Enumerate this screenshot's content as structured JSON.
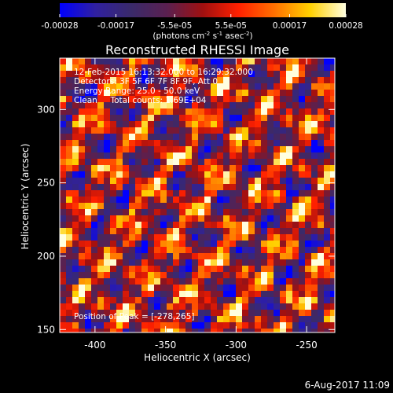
{
  "colorbar": {
    "ticks": [
      "-0.00028",
      "-0.00017",
      "-5.5e-05",
      "5.5e-05",
      "0.00017",
      "0.00028"
    ],
    "tick_values": [
      -0.00028,
      -0.00017,
      -5.5e-05,
      5.5e-05,
      0.00017,
      0.00028
    ],
    "range": [
      -0.00028,
      0.00028
    ],
    "unit_prefix": "(photons cm",
    "unit_exp1": "-2",
    "unit_mid1": " s",
    "unit_exp2": "-1",
    "unit_mid2": " asec",
    "unit_exp3": "-2",
    "unit_suffix": ")",
    "colormap": [
      "#0000ff",
      "#3020a0",
      "#3a2a6a",
      "#5a2050",
      "#a01010",
      "#ff2000",
      "#ff7000",
      "#ffd000",
      "#ffffe0"
    ]
  },
  "chart_data": {
    "type": "heatmap",
    "title": "Reconstructed RHESSI Image",
    "xlabel": "Heliocentric X (arcsec)",
    "ylabel": "Heliocentric Y (arcsec)",
    "xlim": [
      -425,
      -230
    ],
    "ylim": [
      148,
      335
    ],
    "xticks": [
      -400,
      -350,
      -300,
      -250
    ],
    "yticks": [
      150,
      200,
      250,
      300
    ],
    "xtick_labels": [
      "-400",
      "-350",
      "-300",
      "-250"
    ],
    "ytick_labels": [
      "150",
      "200",
      "250",
      "300"
    ],
    "annotations": [
      "12-Feb-2015 16:13:32.000 to 16:29:32.000",
      "Detectors: 3F 5F 6F 7F 8F 9F, Att 0",
      "Energy Range: 25.0 - 50.0 keV",
      "Clean     Total counts: 1.69E+04"
    ],
    "peak_label": "Position of Peak = [-278,265]",
    "peak": [
      -278,
      265
    ],
    "grid": false
  },
  "footer": {
    "date": "6-Aug-2017 11:09"
  }
}
